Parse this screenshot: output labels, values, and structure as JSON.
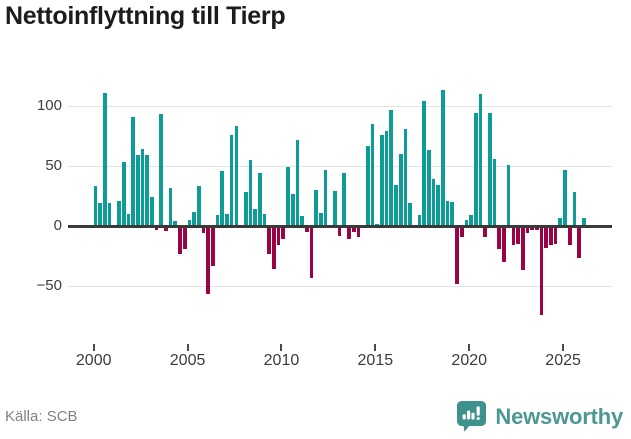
{
  "header": {
    "title": "Nettoinflyttning till Tierp"
  },
  "footer": {
    "source": "Källa: SCB",
    "brand": "Newsworthy"
  },
  "colors": {
    "positive_bar": "#0d9d96",
    "negative_bar": "#9a0444",
    "gridline": "#e3e3e3",
    "zero_axis": "#3a3a3a",
    "title_text": "#1c1c1c",
    "tick_text": "#3c3c3c",
    "source_text": "#818181",
    "brand_teal": "#459390"
  },
  "chart_data": {
    "type": "bar",
    "title": "Nettoinflyttning till Tierp",
    "xlabel": "",
    "ylabel": "",
    "grid": true,
    "legend": false,
    "ylim": [
      -80,
      118
    ],
    "x_axis": {
      "tick_labels": [
        "2000",
        "2005",
        "2010",
        "2015",
        "2020",
        "2025"
      ],
      "tick_years": [
        2000,
        2005,
        2010,
        2015,
        2020,
        2025
      ]
    },
    "y_axis": {
      "ticks": [
        {
          "label": "100",
          "value": 100
        },
        {
          "label": "50",
          "value": 50
        },
        {
          "label": "0",
          "value": 0
        },
        {
          "label": "−50",
          "value": -50
        }
      ]
    },
    "series": [
      {
        "name": "Nettoinflyttning",
        "start": "2000Q1",
        "frequency": "quarterly",
        "values": [
          33,
          19,
          111,
          19,
          0,
          21,
          53,
          10,
          91,
          59,
          64,
          59,
          24,
          -3,
          93,
          -4,
          32,
          4,
          -23,
          -19,
          5,
          12,
          33,
          -6,
          -57,
          -33,
          9,
          46,
          10,
          76,
          83,
          0,
          28,
          55,
          14,
          44,
          10,
          -23,
          -36,
          -16,
          -11,
          49,
          27,
          72,
          8,
          -5,
          -43,
          30,
          11,
          47,
          0,
          29,
          -8,
          44,
          -11,
          -5,
          -9,
          0,
          67,
          85,
          2,
          76,
          79,
          97,
          34,
          60,
          81,
          19,
          0,
          9,
          104,
          63,
          39,
          34,
          113,
          21,
          20,
          -48,
          -9,
          5,
          9,
          94,
          110,
          -9,
          94,
          56,
          -19,
          -30,
          51,
          -16,
          -15,
          -37,
          -6,
          -3,
          -3,
          -74,
          -18,
          -16,
          -15,
          7,
          47,
          -16,
          28,
          -27,
          7
        ]
      }
    ]
  }
}
